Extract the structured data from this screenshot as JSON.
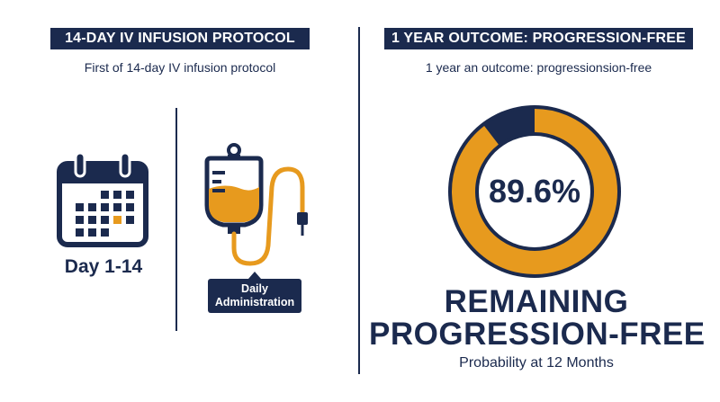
{
  "left_panel": {
    "title": "14-DAY IV INFUSION PROTOCOL",
    "subtitle": "First of 14-day IV infusion protocol",
    "day_label": "Day 1-14",
    "admin_label_line1": "Daily",
    "admin_label_line2": "Administration",
    "icons": [
      "calendar-icon",
      "iv-bag-icon"
    ]
  },
  "right_panel": {
    "title": "1 YEAR OUTCOME: PROGRESSION-FREE",
    "subtitle": "1 year an outcome: progressionsion-free",
    "value_text": "89.6%",
    "value": 89.6,
    "caption_line1": "REMAINING",
    "caption_line2": "PROGRESSION-FREE",
    "caption_sub": "Probability at 12 Months"
  },
  "colors": {
    "navy": "#1b2a4e",
    "orange": "#e79a1e",
    "white": "#ffffff"
  }
}
